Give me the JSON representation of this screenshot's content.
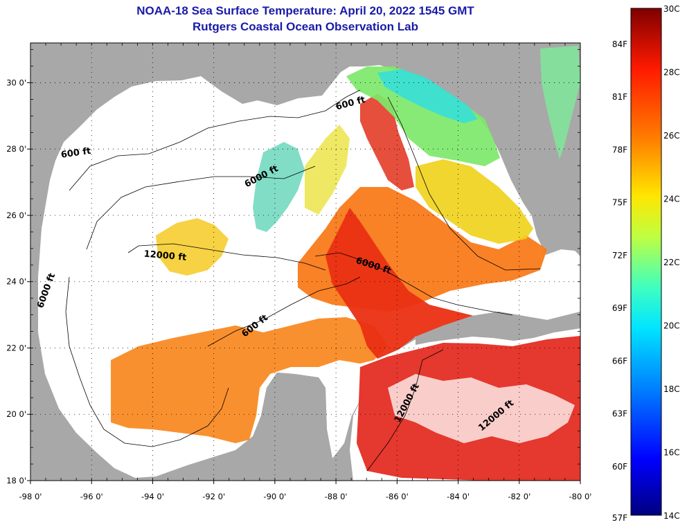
{
  "title": {
    "line1": "NOAA-18 Sea Surface Temperature:  April 20, 2022 1545 GMT",
    "line2": "Rutgers Coastal Ocean Observation Lab"
  },
  "axes": {
    "lat_ticks": [
      {
        "value": 30,
        "label": "30 0'"
      },
      {
        "value": 28,
        "label": "28 0'"
      },
      {
        "value": 26,
        "label": "26 0'"
      },
      {
        "value": 24,
        "label": "24 0'"
      },
      {
        "value": 22,
        "label": "22 0'"
      },
      {
        "value": 20,
        "label": "20 0'"
      },
      {
        "value": 18,
        "label": "18 0'"
      }
    ],
    "lon_ticks": [
      {
        "value": -98,
        "label": "-98 0'"
      },
      {
        "value": -96,
        "label": "-96 0'"
      },
      {
        "value": -94,
        "label": "-94 0'"
      },
      {
        "value": -92,
        "label": "-92 0'"
      },
      {
        "value": -90,
        "label": "-90 0'"
      },
      {
        "value": -88,
        "label": "-88 0'"
      },
      {
        "value": -86,
        "label": "-86 0'"
      },
      {
        "value": -84,
        "label": "-84 0'"
      },
      {
        "value": -82,
        "label": "-82 0'"
      },
      {
        "value": -80,
        "label": "-80 0'"
      }
    ],
    "lat_range": [
      18,
      31.2
    ],
    "lon_range": [
      -98,
      -80
    ]
  },
  "contour_labels": [
    {
      "text": "600 ft",
      "lon": -96.5,
      "lat": 27.8,
      "angle": -8
    },
    {
      "text": "600 ft",
      "lon": -87.5,
      "lat": 29.3,
      "angle": -15
    },
    {
      "text": "6000 ft",
      "lon": -90.4,
      "lat": 27.1,
      "angle": -28
    },
    {
      "text": "12000 ft",
      "lon": -93.6,
      "lat": 24.7,
      "angle": 5
    },
    {
      "text": "6000 ft",
      "lon": -97.4,
      "lat": 23.7,
      "angle": -70
    },
    {
      "text": "6000 ft",
      "lon": -86.8,
      "lat": 24.4,
      "angle": 18
    },
    {
      "text": "600 ft",
      "lon": -90.6,
      "lat": 22.6,
      "angle": -38
    },
    {
      "text": "12000 ft",
      "lon": -85.6,
      "lat": 20.3,
      "angle": -62
    },
    {
      "text": "12000 ft",
      "lon": -82.7,
      "lat": 19.9,
      "angle": -40
    }
  ],
  "colorbar": {
    "min_c": 14,
    "max_c": 30,
    "celsius_labels": [
      {
        "value": 30,
        "label": "30C"
      },
      {
        "value": 28,
        "label": "28C"
      },
      {
        "value": 26,
        "label": "26C"
      },
      {
        "value": 24,
        "label": "24C"
      },
      {
        "value": 22,
        "label": "22C"
      },
      {
        "value": 20,
        "label": "20C"
      },
      {
        "value": 18,
        "label": "18C"
      },
      {
        "value": 16,
        "label": "16C"
      },
      {
        "value": 14,
        "label": "14C"
      }
    ],
    "fahrenheit_labels": [
      {
        "value": 84,
        "label": "84F"
      },
      {
        "value": 81,
        "label": "81F"
      },
      {
        "value": 78,
        "label": "78F"
      },
      {
        "value": 75,
        "label": "75F"
      },
      {
        "value": 72,
        "label": "72F"
      },
      {
        "value": 69,
        "label": "69F"
      },
      {
        "value": 66,
        "label": "66F"
      },
      {
        "value": 63,
        "label": "63F"
      },
      {
        "value": 60,
        "label": "60F"
      },
      {
        "value": 57,
        "label": "57F"
      }
    ],
    "colors": [
      "#00007f",
      "#0000ff",
      "#0080ff",
      "#00e5ff",
      "#40ffbf",
      "#bfff40",
      "#ffe600",
      "#ff8000",
      "#ff1a00",
      "#7f0000"
    ]
  },
  "colors": {
    "land": "#a8a8a8",
    "cloud": "#ffffff",
    "title": "#1a1aa8"
  }
}
